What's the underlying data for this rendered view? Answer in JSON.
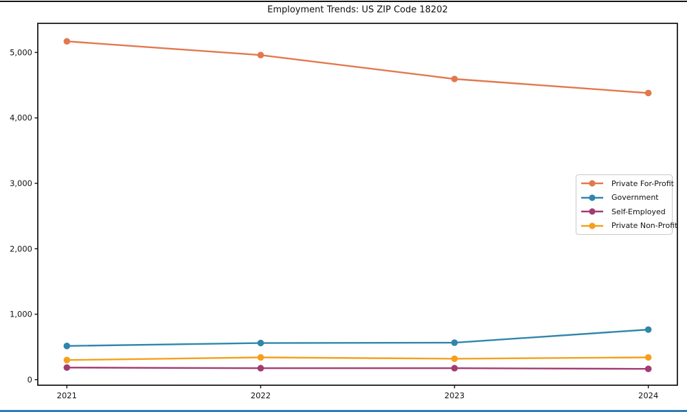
{
  "page": {
    "background": "#FFFFFF",
    "edge_top_color": "#141414",
    "edge_bottom_color": "#2E7EBB"
  },
  "chart_data": {
    "type": "line",
    "title": "Employment Trends: US ZIP Code 18202",
    "xlabel": "",
    "ylabel": "",
    "x": [
      2021,
      2022,
      2023,
      2024
    ],
    "xtick_labels": [
      "2021",
      "2022",
      "2023",
      "2024"
    ],
    "yticks": [
      0,
      1000,
      2000,
      3000,
      4000,
      5000
    ],
    "ytick_labels": [
      "0",
      "1,000",
      "2,000",
      "3,000",
      "4,000",
      "5,000"
    ],
    "xlim": [
      2020.85,
      2024.15
    ],
    "ylim": [
      -85,
      5445
    ],
    "grid": false,
    "axis_color": "#1a1a1a",
    "text_color": "#111111",
    "legend": {
      "position": "center-right",
      "border_color": "#c9c9c9"
    },
    "series": [
      {
        "name": "Private For-Profit",
        "color": "#E2784E",
        "values": [
          5170,
          4960,
          4595,
          4380
        ]
      },
      {
        "name": "Government",
        "color": "#2E86AB",
        "values": [
          515,
          560,
          565,
          765
        ]
      },
      {
        "name": "Self-Employed",
        "color": "#A23B72",
        "values": [
          185,
          175,
          175,
          165
        ]
      },
      {
        "name": "Private Non-Profit",
        "color": "#F5A01B",
        "values": [
          300,
          340,
          320,
          340
        ]
      }
    ]
  }
}
